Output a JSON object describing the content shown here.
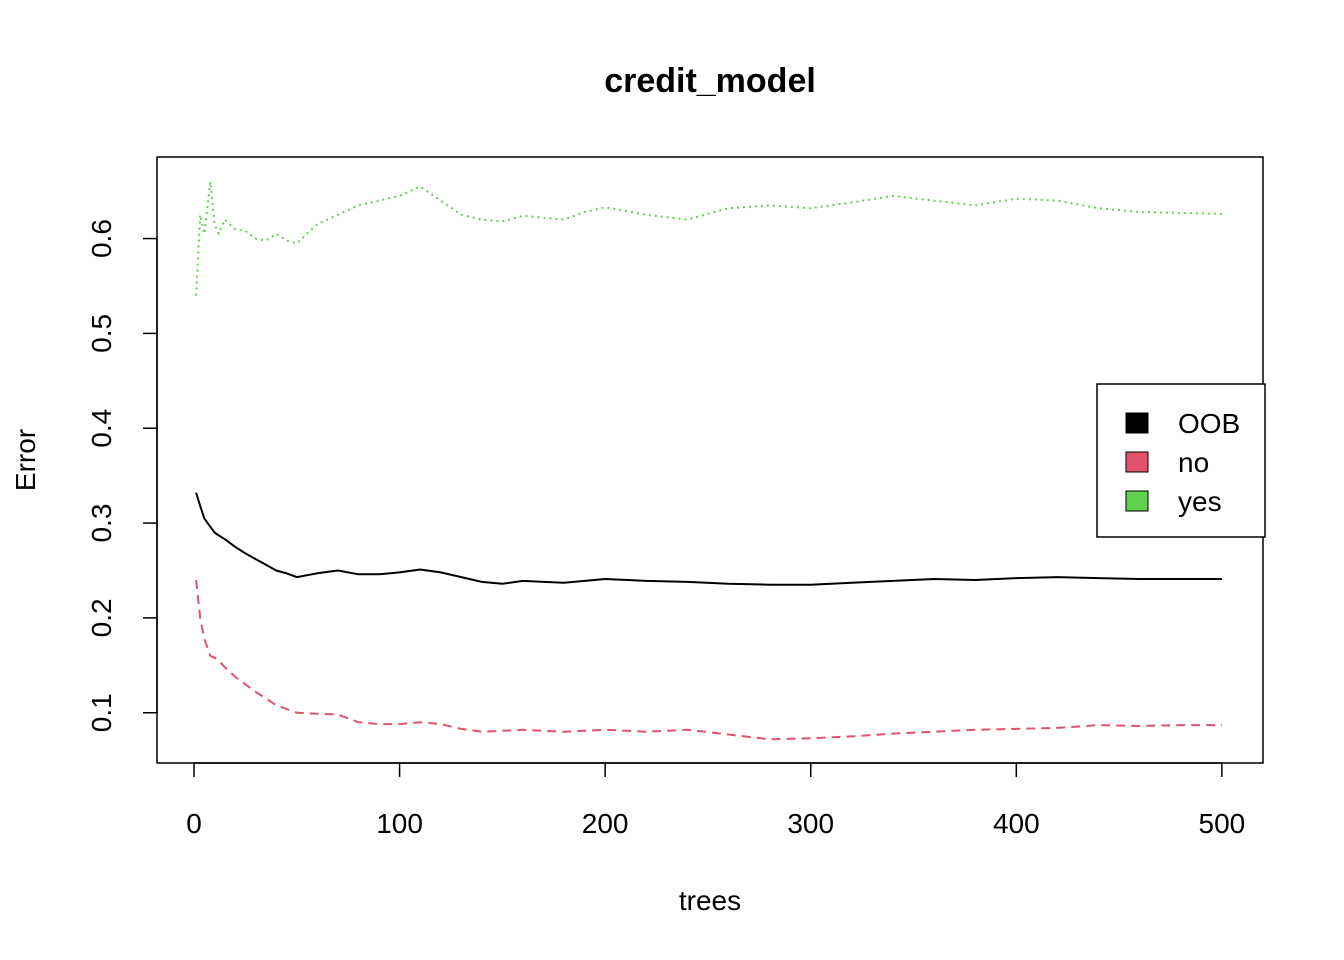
{
  "chart_data": {
    "type": "line",
    "title": "credit_model",
    "xlabel": "trees",
    "ylabel": "Error",
    "xlim": [
      -18,
      520
    ],
    "ylim": [
      0.047,
      0.686
    ],
    "x_ticks": [
      0,
      100,
      200,
      300,
      400,
      500
    ],
    "x_tick_labels": [
      "0",
      "100",
      "200",
      "300",
      "400",
      "500"
    ],
    "y_ticks": [
      0.1,
      0.2,
      0.3,
      0.4,
      0.5,
      0.6
    ],
    "y_tick_labels": [
      "0.1",
      "0.2",
      "0.3",
      "0.4",
      "0.5",
      "0.6"
    ],
    "grid": false,
    "legend_position": "right",
    "series": [
      {
        "name": "OOB",
        "color": "#000000",
        "dash": "solid",
        "x": [
          1,
          3,
          5,
          8,
          10,
          12,
          15,
          20,
          25,
          30,
          35,
          40,
          45,
          50,
          60,
          70,
          80,
          90,
          100,
          110,
          120,
          130,
          140,
          150,
          160,
          170,
          180,
          190,
          200,
          220,
          240,
          260,
          280,
          300,
          320,
          340,
          360,
          380,
          400,
          420,
          440,
          460,
          480,
          500
        ],
        "y": [
          0.332,
          0.318,
          0.305,
          0.296,
          0.29,
          0.287,
          0.283,
          0.275,
          0.268,
          0.262,
          0.256,
          0.25,
          0.247,
          0.243,
          0.247,
          0.25,
          0.246,
          0.246,
          0.248,
          0.251,
          0.248,
          0.243,
          0.238,
          0.236,
          0.239,
          0.238,
          0.237,
          0.239,
          0.241,
          0.239,
          0.238,
          0.236,
          0.235,
          0.235,
          0.237,
          0.239,
          0.241,
          0.24,
          0.242,
          0.243,
          0.242,
          0.241,
          0.241,
          0.241
        ]
      },
      {
        "name": "no",
        "color": "#DF536B",
        "dash": "dashed",
        "x": [
          1,
          3,
          5,
          8,
          10,
          12,
          15,
          20,
          25,
          30,
          35,
          40,
          45,
          50,
          60,
          70,
          80,
          90,
          100,
          110,
          120,
          130,
          140,
          150,
          160,
          170,
          180,
          190,
          200,
          220,
          240,
          260,
          280,
          300,
          320,
          340,
          360,
          380,
          400,
          420,
          440,
          460,
          480,
          500
        ],
        "y": [
          0.24,
          0.2,
          0.178,
          0.16,
          0.158,
          0.155,
          0.148,
          0.138,
          0.13,
          0.122,
          0.115,
          0.108,
          0.104,
          0.1,
          0.099,
          0.098,
          0.09,
          0.088,
          0.088,
          0.09,
          0.088,
          0.083,
          0.08,
          0.081,
          0.082,
          0.081,
          0.08,
          0.081,
          0.082,
          0.08,
          0.082,
          0.077,
          0.072,
          0.073,
          0.075,
          0.078,
          0.08,
          0.082,
          0.083,
          0.084,
          0.087,
          0.086,
          0.087,
          0.087
        ]
      },
      {
        "name": "yes",
        "color": "#61D04F",
        "dash": "dotted",
        "x": [
          1,
          3,
          5,
          8,
          10,
          12,
          15,
          20,
          25,
          30,
          35,
          40,
          45,
          50,
          60,
          70,
          80,
          90,
          100,
          110,
          120,
          130,
          140,
          150,
          160,
          170,
          180,
          190,
          200,
          220,
          240,
          260,
          280,
          300,
          320,
          340,
          360,
          380,
          400,
          420,
          440,
          460,
          480,
          500
        ],
        "y": [
          0.54,
          0.625,
          0.605,
          0.66,
          0.615,
          0.605,
          0.62,
          0.61,
          0.608,
          0.6,
          0.598,
          0.605,
          0.598,
          0.595,
          0.615,
          0.625,
          0.635,
          0.64,
          0.645,
          0.655,
          0.64,
          0.625,
          0.62,
          0.618,
          0.624,
          0.622,
          0.62,
          0.628,
          0.633,
          0.625,
          0.62,
          0.632,
          0.635,
          0.632,
          0.638,
          0.645,
          0.64,
          0.635,
          0.642,
          0.64,
          0.632,
          0.628,
          0.627,
          0.626
        ]
      }
    ]
  }
}
